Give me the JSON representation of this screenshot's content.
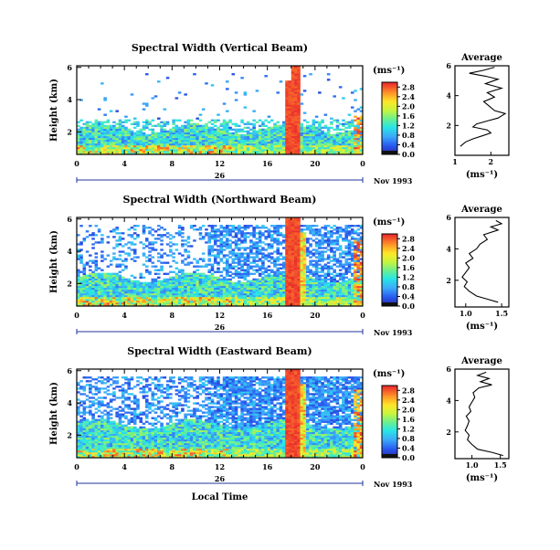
{
  "chart_data": [
    {
      "type": "heatmap",
      "title": "Spectral Width (Vertical Beam)",
      "ylabel": "Height (km)",
      "y_ticks": [
        "6",
        "4",
        "2"
      ],
      "ylim": [
        0.6,
        6.1
      ],
      "x_ticks": [
        "0",
        "4",
        "8",
        "12",
        "16",
        "20",
        "0"
      ],
      "xlim": [
        0,
        24
      ],
      "day_label": "26",
      "date_label": "Nov 1993",
      "colorbar": {
        "unit": "(ms⁻¹)",
        "labels": [
          "2.8",
          "2.4",
          "2.0",
          "1.6",
          "1.2",
          "0.8",
          "0.4",
          "0.0"
        ],
        "range": [
          0.0,
          3.0
        ]
      },
      "average": {
        "title": "Average",
        "xlabel": "(ms⁻¹)",
        "x_ticks": [
          "1",
          "2"
        ],
        "xlim": [
          1.0,
          2.5
        ],
        "y_ticks": [
          "6",
          "4",
          "2"
        ],
        "ylim": [
          0.0,
          6.0
        ],
        "profile": [
          [
            1.15,
            0.6
          ],
          [
            1.3,
            0.9
          ],
          [
            1.5,
            1.1
          ],
          [
            1.75,
            1.3
          ],
          [
            2.0,
            1.5
          ],
          [
            1.9,
            1.7
          ],
          [
            1.5,
            1.9
          ],
          [
            1.6,
            2.1
          ],
          [
            1.9,
            2.3
          ],
          [
            2.2,
            2.5
          ],
          [
            2.4,
            2.8
          ],
          [
            2.1,
            3.0
          ],
          [
            1.95,
            3.3
          ],
          [
            1.8,
            3.6
          ],
          [
            2.1,
            3.9
          ],
          [
            1.9,
            4.2
          ],
          [
            2.3,
            4.5
          ],
          [
            1.85,
            4.8
          ],
          [
            2.2,
            5.1
          ],
          [
            1.85,
            5.3
          ],
          [
            1.4,
            5.5
          ],
          [
            1.8,
            5.7
          ],
          [
            2.1,
            5.9
          ]
        ]
      }
    },
    {
      "type": "heatmap",
      "title": "Spectral Width (Northward Beam)",
      "ylabel": "Height (km)",
      "y_ticks": [
        "6",
        "4",
        "2"
      ],
      "ylim": [
        0.6,
        6.1
      ],
      "x_ticks": [
        "0",
        "4",
        "8",
        "12",
        "16",
        "20",
        "0"
      ],
      "xlim": [
        0,
        24
      ],
      "day_label": "26",
      "date_label": "Nov 1993",
      "colorbar": {
        "unit": "(ms⁻¹)",
        "labels": [
          "2.8",
          "2.4",
          "2.0",
          "1.6",
          "1.2",
          "0.8",
          "0.4",
          "0.0"
        ],
        "range": [
          0.0,
          3.0
        ]
      },
      "average": {
        "title": "Average",
        "xlabel": "(ms⁻¹)",
        "x_ticks": [
          "1.0",
          "1.5"
        ],
        "xlim": [
          0.85,
          1.6
        ],
        "y_ticks": [
          "6",
          "4",
          "2"
        ],
        "ylim": [
          0.3,
          6.0
        ],
        "profile": [
          [
            1.45,
            0.6
          ],
          [
            1.3,
            0.8
          ],
          [
            1.15,
            1.0
          ],
          [
            1.05,
            1.3
          ],
          [
            0.98,
            1.6
          ],
          [
            1.02,
            1.9
          ],
          [
            0.95,
            2.2
          ],
          [
            1.0,
            2.5
          ],
          [
            1.05,
            2.8
          ],
          [
            1.0,
            3.1
          ],
          [
            1.1,
            3.4
          ],
          [
            1.05,
            3.7
          ],
          [
            1.15,
            4.0
          ],
          [
            1.2,
            4.3
          ],
          [
            1.3,
            4.6
          ],
          [
            1.25,
            4.9
          ],
          [
            1.45,
            5.2
          ],
          [
            1.35,
            5.4
          ],
          [
            1.5,
            5.6
          ],
          [
            1.42,
            5.8
          ]
        ]
      }
    },
    {
      "type": "heatmap",
      "title": "Spectral Width (Eastward Beam)",
      "ylabel": "Height (km)",
      "y_ticks": [
        "6",
        "4",
        "2"
      ],
      "ylim": [
        0.6,
        6.1
      ],
      "x_ticks": [
        "0",
        "4",
        "8",
        "12",
        "16",
        "20",
        "0"
      ],
      "xlim": [
        0,
        24
      ],
      "day_label": "26",
      "date_label": "Nov 1993",
      "xlabel": "Local Time",
      "colorbar": {
        "unit": "(ms⁻¹)",
        "labels": [
          "2.8",
          "2.4",
          "2.0",
          "1.6",
          "1.2",
          "0.8",
          "0.4",
          "0.0"
        ],
        "range": [
          0.0,
          3.0
        ]
      },
      "average": {
        "title": "Average",
        "xlabel": "(ms⁻¹)",
        "x_ticks": [
          "1.0",
          "1.5"
        ],
        "xlim": [
          0.7,
          1.65
        ],
        "y_ticks": [
          "6",
          "4",
          "2"
        ],
        "ylim": [
          0.3,
          6.0
        ],
        "profile": [
          [
            1.55,
            0.5
          ],
          [
            1.35,
            0.7
          ],
          [
            1.1,
            0.9
          ],
          [
            1.0,
            1.2
          ],
          [
            0.92,
            1.5
          ],
          [
            0.95,
            1.8
          ],
          [
            0.88,
            2.1
          ],
          [
            0.92,
            2.4
          ],
          [
            0.95,
            2.7
          ],
          [
            0.9,
            3.0
          ],
          [
            0.98,
            3.3
          ],
          [
            0.95,
            3.6
          ],
          [
            1.0,
            3.9
          ],
          [
            1.05,
            4.2
          ],
          [
            1.02,
            4.5
          ],
          [
            1.12,
            4.8
          ],
          [
            1.35,
            5.0
          ],
          [
            1.15,
            5.2
          ],
          [
            1.3,
            5.4
          ],
          [
            1.1,
            5.6
          ],
          [
            1.25,
            5.8
          ]
        ]
      }
    }
  ]
}
